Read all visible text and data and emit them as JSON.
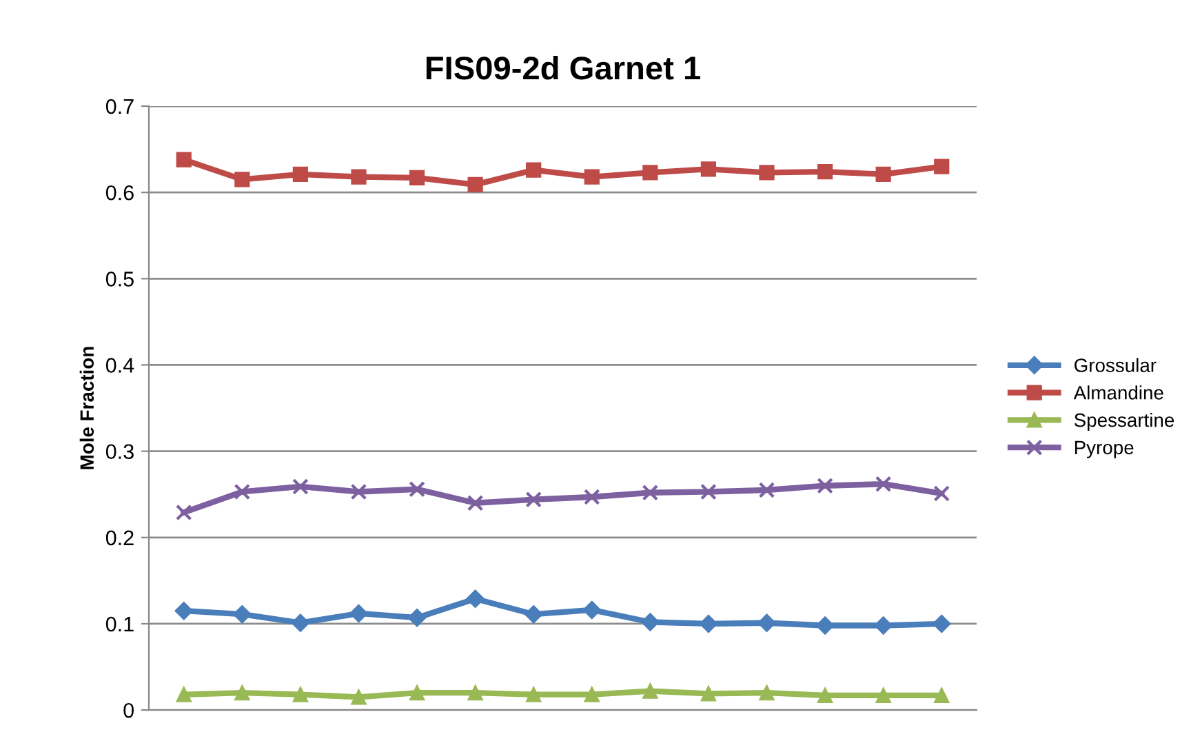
{
  "chart_data": {
    "type": "line",
    "title": "FIS09-2d Garnet 1",
    "ylabel": "Mole Fraction",
    "categories": [
      null,
      null,
      null,
      null,
      null,
      null,
      null,
      null,
      null,
      null,
      null,
      null,
      null,
      null
    ],
    "series": [
      {
        "name": "Grossular",
        "color": "#4a7ebb",
        "marker": "diamond",
        "values": [
          0.115,
          0.111,
          0.101,
          0.112,
          0.107,
          0.129,
          0.111,
          0.116,
          0.102,
          0.1,
          0.101,
          0.098,
          0.098,
          0.1
        ]
      },
      {
        "name": "Almandine",
        "color": "#be4b48",
        "marker": "square",
        "values": [
          0.638,
          0.615,
          0.621,
          0.618,
          0.617,
          0.609,
          0.626,
          0.618,
          0.623,
          0.627,
          0.623,
          0.624,
          0.621,
          0.63
        ]
      },
      {
        "name": "Spessartine",
        "color": "#98b954",
        "marker": "triangle",
        "values": [
          0.018,
          0.02,
          0.018,
          0.015,
          0.02,
          0.02,
          0.018,
          0.018,
          0.022,
          0.019,
          0.02,
          0.017,
          0.017,
          0.017
        ]
      },
      {
        "name": "Pyrope",
        "color": "#7d60a0",
        "marker": "cross",
        "values": [
          0.229,
          0.253,
          0.259,
          0.253,
          0.256,
          0.24,
          0.244,
          0.247,
          0.252,
          0.253,
          0.255,
          0.26,
          0.262,
          0.251
        ]
      }
    ],
    "ylim": [
      0,
      0.7
    ],
    "yticks": [
      0,
      0.1,
      0.2,
      0.3,
      0.4,
      0.5,
      0.6,
      0.7
    ],
    "grid": "y",
    "legend": "right",
    "tick_labels": "y"
  }
}
